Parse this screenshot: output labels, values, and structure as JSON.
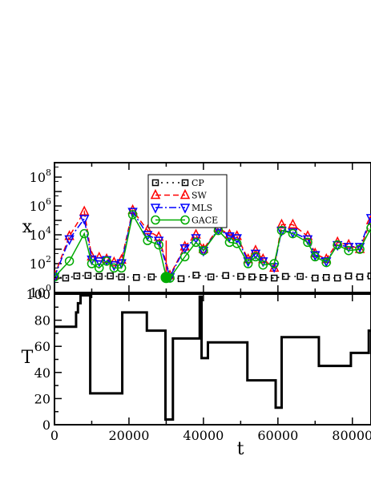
{
  "chart_data": [
    {
      "type": "line",
      "ylabel": "x",
      "yscale": "log",
      "ylim": [
        1,
        1000000000
      ],
      "xlim": [
        0,
        85000
      ],
      "ytick_base": "10",
      "ytick_exponents": [
        "0",
        "2",
        "4",
        "6",
        "8"
      ],
      "legend_position": "top-left",
      "series": [
        {
          "name": "CP",
          "color": "#000000",
          "linestyle": "dotted",
          "marker": "square",
          "x": [
            0,
            3000,
            6000,
            9000,
            12000,
            15000,
            18000,
            22000,
            26000,
            30000,
            34000,
            38000,
            42000,
            46000,
            50000,
            53000,
            56000,
            59000,
            62000,
            66000,
            70000,
            73000,
            76000,
            79000,
            82000,
            85000
          ],
          "y": [
            12,
            10,
            14,
            15,
            13,
            14,
            12,
            11,
            12,
            13,
            9,
            16,
            12,
            15,
            13,
            12,
            11,
            10,
            13,
            13,
            10,
            11,
            10,
            14,
            12,
            14
          ]
        },
        {
          "name": "SW",
          "color": "#ff0000",
          "linestyle": "dashed",
          "marker": "triangle-up",
          "x": [
            0,
            4000,
            8000,
            10000,
            12000,
            14000,
            16000,
            18000,
            21000,
            25000,
            28000,
            31000,
            35000,
            38000,
            40000,
            44000,
            47000,
            49000,
            52000,
            54000,
            56000,
            59000,
            61000,
            64000,
            68000,
            70000,
            73000,
            76000,
            79000,
            82000,
            85000
          ],
          "y": [
            15,
            8000,
            400000,
            300,
            260,
            200,
            120,
            180,
            500000,
            20000,
            7000,
            15,
            1500,
            10000,
            1000,
            30000,
            10000,
            8000,
            200,
            800,
            200,
            50,
            50000,
            50000,
            8000,
            500,
            200,
            3000,
            2000,
            1000,
            100000
          ],
          "errorbar": {
            "x": 30000,
            "values": [
              20,
              4000
            ]
          }
        },
        {
          "name": "MLS",
          "color": "#0000ff",
          "linestyle": "dashdot",
          "marker": "triangle-down",
          "x": [
            0,
            4000,
            8000,
            10000,
            12000,
            14000,
            16000,
            18000,
            21000,
            25000,
            28000,
            31000,
            35000,
            38000,
            40000,
            44000,
            47000,
            49000,
            52000,
            54000,
            56000,
            59000,
            61000,
            64000,
            68000,
            70000,
            73000,
            76000,
            79000,
            82000,
            85000
          ],
          "y": [
            12,
            5000,
            130000,
            200,
            150,
            180,
            80,
            110,
            400000,
            10000,
            4000,
            12,
            1200,
            6000,
            800,
            25000,
            8000,
            6000,
            150,
            500,
            150,
            60,
            20000,
            15000,
            5000,
            400,
            150,
            2000,
            1500,
            1500,
            150000
          ]
        },
        {
          "name": "GACE",
          "color": "#00aa00",
          "linestyle": "solid",
          "marker": "circle",
          "x": [
            0,
            4000,
            8000,
            10000,
            12000,
            14000,
            16000,
            18000,
            21000,
            25000,
            28000,
            30000,
            31000,
            35000,
            38000,
            40000,
            44000,
            47000,
            49000,
            52000,
            54000,
            56000,
            59000,
            61000,
            64000,
            68000,
            70000,
            73000,
            76000,
            79000,
            82000,
            85000
          ],
          "y": [
            12,
            150,
            12000,
            100,
            50,
            150,
            50,
            50,
            250000,
            4000,
            2000,
            12,
            10,
            300,
            3000,
            800,
            20000,
            3000,
            2500,
            100,
            300,
            80,
            100,
            20000,
            12000,
            3000,
            300,
            120,
            2000,
            800,
            1000,
            30000
          ]
        }
      ]
    },
    {
      "type": "line",
      "xlabel": "t",
      "ylabel": "T",
      "xlim": [
        0,
        85000
      ],
      "ylim": [
        0,
        100
      ],
      "xticks": [
        "0",
        "20000",
        "40000",
        "60000",
        "80000"
      ],
      "yticks": [
        "0",
        "20",
        "40",
        "60",
        "80",
        "100"
      ],
      "series": [
        {
          "color": "#000000",
          "linestyle": "solid",
          "x": [
            0,
            5800,
            5800,
            6300,
            6300,
            7000,
            7000,
            9600,
            9600,
            18200,
            18200,
            24800,
            24800,
            29800,
            29800,
            31800,
            31800,
            39000,
            39000,
            39500,
            39500,
            41200,
            41200,
            51800,
            51800,
            59400,
            59400,
            61000,
            61000,
            71000,
            71000,
            79600,
            79600,
            84400,
            84400,
            85000
          ],
          "y": [
            75,
            75,
            86,
            86,
            93,
            93,
            99,
            99,
            24,
            24,
            86,
            86,
            72,
            72,
            4,
            4,
            66,
            66,
            98,
            98,
            51,
            51,
            63,
            63,
            34,
            34,
            13,
            13,
            67,
            67,
            45,
            45,
            55,
            55,
            72,
            72
          ]
        }
      ]
    }
  ]
}
